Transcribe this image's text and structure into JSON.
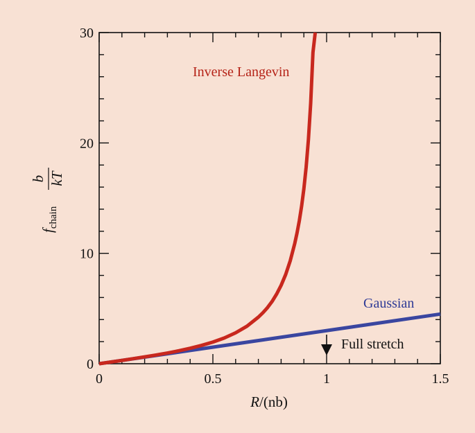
{
  "chart_data": {
    "type": "line",
    "xlim": [
      0,
      1.5
    ],
    "ylim": [
      0,
      30
    ],
    "x_ticks": [
      0,
      0.5,
      1,
      1.5
    ],
    "x_tick_labels": [
      "0",
      "0.5",
      "1",
      "1.5"
    ],
    "y_ticks": [
      0,
      10,
      20,
      30
    ],
    "y_tick_labels": [
      "0",
      "10",
      "20",
      "30"
    ],
    "xlabel": "R/(nb)",
    "ylabel": "f_chain b/kT",
    "grid": false,
    "series": [
      {
        "name": "Inverse Langevin",
        "color": "#c8281e",
        "x": [
          0,
          0.05,
          0.1,
          0.15,
          0.2,
          0.25,
          0.3,
          0.35,
          0.4,
          0.45,
          0.5,
          0.55,
          0.6,
          0.65,
          0.7,
          0.72,
          0.74,
          0.76,
          0.78,
          0.8,
          0.82,
          0.84,
          0.86,
          0.87,
          0.88,
          0.89,
          0.9,
          0.91,
          0.92,
          0.93,
          0.94,
          0.95
        ],
        "y": [
          0,
          0.15,
          0.3,
          0.46,
          0.62,
          0.79,
          0.97,
          1.17,
          1.4,
          1.66,
          1.96,
          2.33,
          2.8,
          3.4,
          4.22,
          4.62,
          5.08,
          5.63,
          6.3,
          7.1,
          8.08,
          9.32,
          10.9,
          11.85,
          12.95,
          14.26,
          15.84,
          17.8,
          20.3,
          23.6,
          28.2,
          30
        ]
      },
      {
        "name": "Gaussian",
        "color": "#3a46a0",
        "x": [
          0,
          1.5
        ],
        "y": [
          0,
          4.5
        ]
      }
    ],
    "annotations": [
      {
        "text": "Full stretch",
        "x": 1,
        "arrow": "down"
      }
    ]
  },
  "labels": {
    "inverse_langevin": "Inverse Langevin",
    "gaussian": "Gaussian",
    "full_stretch": "Full stretch",
    "xlabel_R": "R",
    "xlabel_rest": "/(nb)",
    "ylabel_f": "f",
    "ylabel_sub": "chain",
    "ylabel_num": "b",
    "ylabel_den": "kT"
  }
}
